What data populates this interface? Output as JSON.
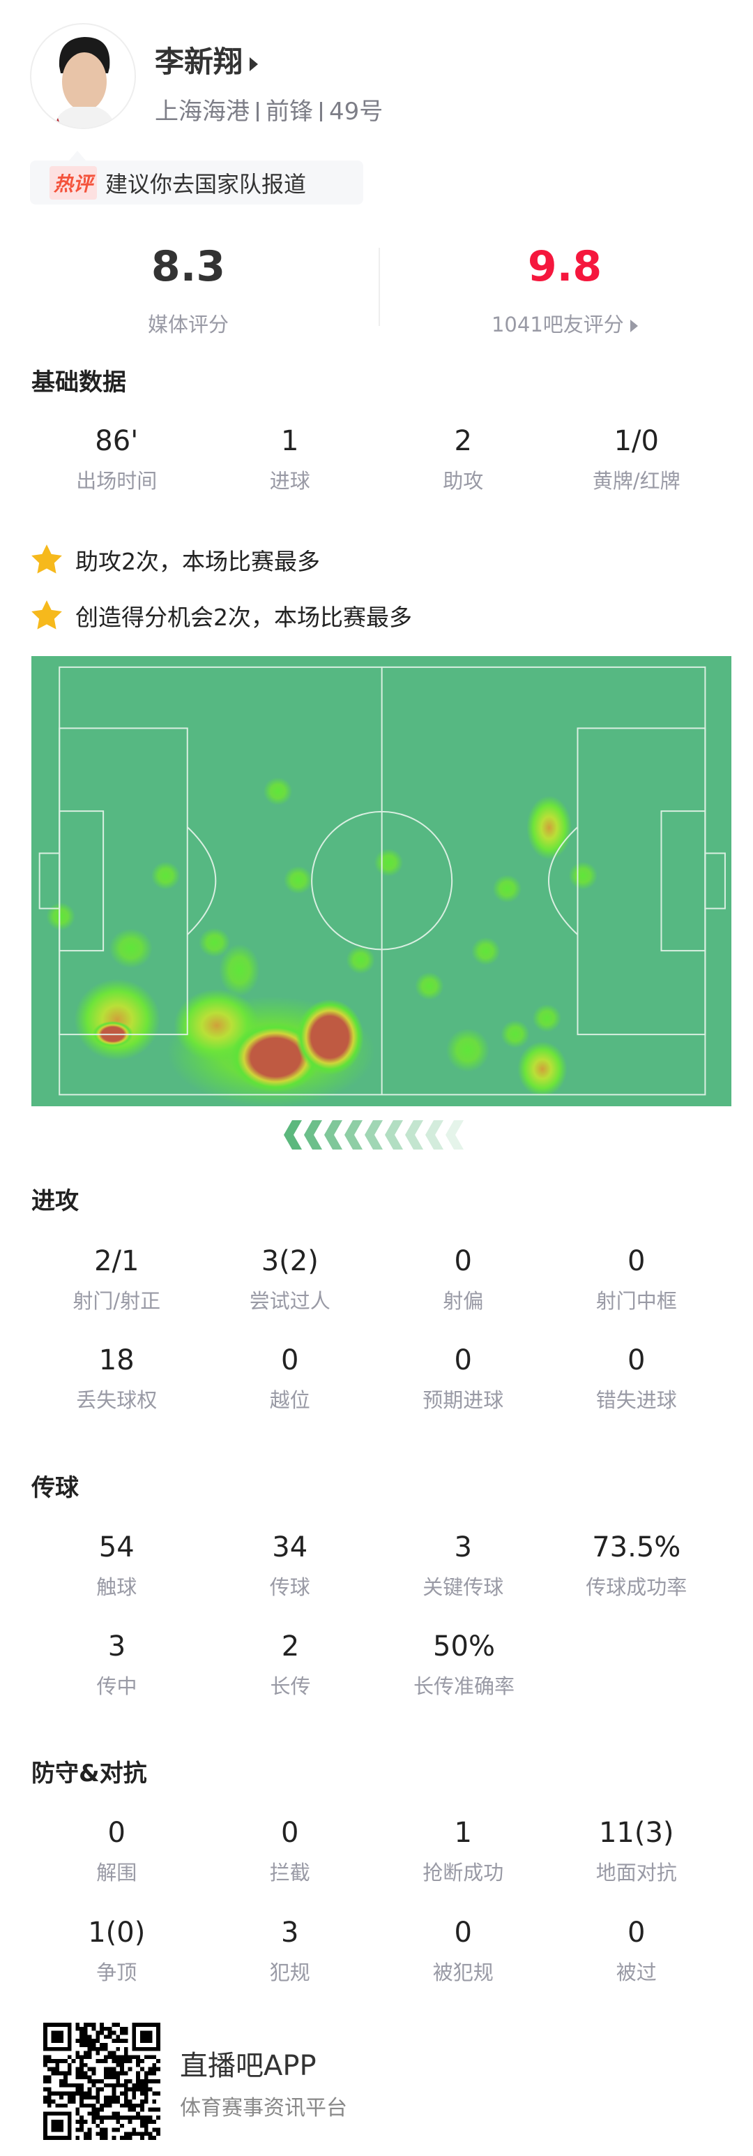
{
  "player": {
    "name": "李新翔",
    "team": "上海海港",
    "position": "前锋",
    "number": "49号"
  },
  "hot_comment": {
    "tag": "热评",
    "text": "建议你去国家队报道"
  },
  "ratings": {
    "media": {
      "value": "8.3",
      "label": "媒体评分",
      "color": "#333333"
    },
    "fans": {
      "value": "9.8",
      "label": "1041吧友评分",
      "color": "#f5173d"
    }
  },
  "basic": {
    "title": "基础数据",
    "items": [
      {
        "v": "86'",
        "l": "出场时间"
      },
      {
        "v": "1",
        "l": "进球"
      },
      {
        "v": "2",
        "l": "助攻"
      },
      {
        "v": "1/0",
        "l": "黄牌/红牌"
      }
    ]
  },
  "highlights": [
    "助攻2次，本场比赛最多",
    "创造得分机会2次，本场比赛最多"
  ],
  "attack": {
    "title": "进攻",
    "items": [
      {
        "v": "2/1",
        "l": "射门/射正"
      },
      {
        "v": "3(2)",
        "l": "尝试过人"
      },
      {
        "v": "0",
        "l": "射偏"
      },
      {
        "v": "0",
        "l": "射门中框"
      },
      {
        "v": "18",
        "l": "丢失球权"
      },
      {
        "v": "0",
        "l": "越位"
      },
      {
        "v": "0",
        "l": "预期进球"
      },
      {
        "v": "0",
        "l": "错失进球"
      }
    ]
  },
  "passing": {
    "title": "传球",
    "items": [
      {
        "v": "54",
        "l": "触球"
      },
      {
        "v": "34",
        "l": "传球"
      },
      {
        "v": "3",
        "l": "关键传球"
      },
      {
        "v": "73.5%",
        "l": "传球成功率"
      },
      {
        "v": "3",
        "l": "传中"
      },
      {
        "v": "2",
        "l": "长传"
      },
      {
        "v": "50%",
        "l": "长传准确率"
      }
    ]
  },
  "defense": {
    "title": "防守&对抗",
    "items": [
      {
        "v": "0",
        "l": "解围"
      },
      {
        "v": "0",
        "l": "拦截"
      },
      {
        "v": "1",
        "l": "抢断成功"
      },
      {
        "v": "11(3)",
        "l": "地面对抗"
      },
      {
        "v": "1(0)",
        "l": "争顶"
      },
      {
        "v": "3",
        "l": "犯规"
      },
      {
        "v": "0",
        "l": "被犯规"
      },
      {
        "v": "0",
        "l": "被过"
      }
    ]
  },
  "heatmap": {
    "pitch_color": "#56b882",
    "attack_direction": "left"
  },
  "footer": {
    "app": "直播吧APP",
    "tagline": "体育赛事资讯平台"
  }
}
